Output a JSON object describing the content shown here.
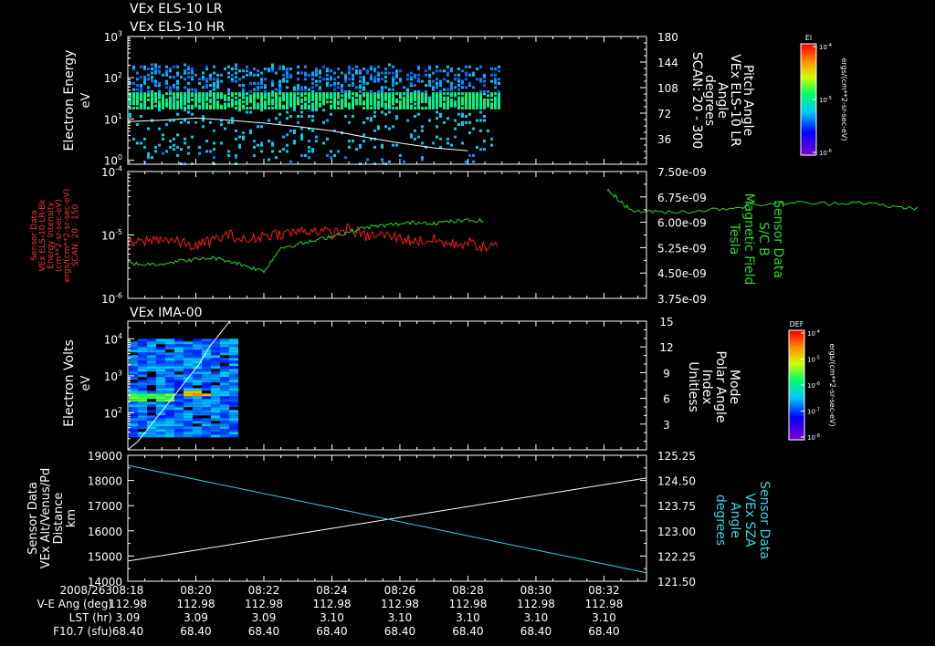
{
  "chart_data": [
    {
      "id": "panel1",
      "type": "heatmap",
      "titles": [
        "VEx ELS-10 LR",
        "VEx ELS-10 HR"
      ],
      "ylabel": [
        "Electron Energy",
        "eV"
      ],
      "yticks": [
        {
          "exp": "0",
          "v": 1
        },
        {
          "exp": "1",
          "v": 10
        },
        {
          "exp": "2",
          "v": 100
        },
        {
          "exp": "3",
          "v": 1000
        }
      ],
      "ylim": [
        0.8,
        1000
      ],
      "y2label": [
        "Pitch Angle",
        "VEx ELS-10 LR",
        "Angle",
        "degrees",
        "SCAN: 20 - 300"
      ],
      "y2ticks": [
        "180",
        "144",
        "108",
        "72",
        "36"
      ],
      "y2lim": [
        0,
        180
      ],
      "x_end_min": 10.9,
      "overlay_pitch": {
        "x": [
          0,
          1,
          2,
          3,
          4,
          5,
          6,
          7,
          8,
          9,
          10
        ],
        "y": [
          60,
          62,
          65,
          62,
          58,
          53,
          47,
          38,
          30,
          23,
          19
        ]
      },
      "colorbar": {
        "label": "El",
        "tick_prefix": "10",
        "tick_exps": [
          "-4",
          "-5",
          "-6"
        ],
        "units": "ergs/(cm**2-sr-sec-eV)"
      }
    },
    {
      "id": "panel2",
      "type": "line",
      "ylabel": [
        "Sensor Data",
        "VEx ELS-10 LR-Bk",
        "Energy Intensity",
        "(cm**2-sr-sec-eV)",
        "ergs/(cm**2-sr-sec-eV)",
        "SCAN: 20 - 150"
      ],
      "yticks": [
        {
          "exp": "-4"
        },
        {
          "exp": "-5"
        },
        {
          "exp": "-6"
        }
      ],
      "ylog": [
        -6,
        -4
      ],
      "y2label": [
        "Sensor Data",
        "S/C B",
        "Magnetic Field",
        "Tesla"
      ],
      "y2ticks": [
        "7.50e-09",
        "6.75e-09",
        "6.00e-09",
        "5.25e-09",
        "4.50e-09",
        "3.75e-09"
      ],
      "y2lim": [
        3.75e-09,
        7.5e-09
      ],
      "series": [
        {
          "name": "Energy Intensity",
          "axis": "left",
          "color": "#ff1a1a",
          "x": [
            0,
            0.5,
            1,
            1.5,
            2,
            2.5,
            3,
            3.5,
            4,
            4.5,
            5,
            5.5,
            6,
            6.5,
            7,
            7.5,
            8,
            8.5,
            9,
            9.5,
            10,
            10.5,
            10.9
          ],
          "logy": [
            -5.15,
            -5.1,
            -5.05,
            -5.12,
            -5.18,
            -5.08,
            -5.0,
            -5.1,
            -5.0,
            -4.98,
            -4.95,
            -4.92,
            -4.98,
            -4.9,
            -5.02,
            -5.0,
            -5.05,
            -5.1,
            -5.08,
            -5.15,
            -5.12,
            -5.2,
            -5.18
          ]
        },
        {
          "name": "S/C B",
          "axis": "right",
          "color": "#22dd22",
          "x": [
            0,
            0.5,
            1,
            1.5,
            2,
            2.5,
            3,
            3.5,
            4,
            4.5,
            5,
            5.5,
            6,
            6.5,
            7,
            7.5,
            8,
            8.5,
            9,
            9.5,
            10,
            10.5
          ],
          "y": [
            4.8e-09,
            4.75e-09,
            4.78e-09,
            4.85e-09,
            4.9e-09,
            4.95e-09,
            4.85e-09,
            4.7e-09,
            4.55e-09,
            5.25e-09,
            5.35e-09,
            5.45e-09,
            5.6e-09,
            5.7e-09,
            5.85e-09,
            5.9e-09,
            5.95e-09,
            6e-09,
            5.98e-09,
            6.02e-09,
            6.05e-09,
            6.05e-09
          ]
        },
        {
          "name": "S/C B segment 2",
          "axis": "right",
          "color": "#22dd22",
          "x": [
            14.1,
            14.4,
            14.8,
            15.5,
            16.5,
            17.5,
            18.5,
            19.5,
            20.5,
            21.5,
            22.5,
            23.3
          ],
          "y": [
            6.95e-09,
            6.7e-09,
            6.35e-09,
            6.3e-09,
            6.32e-09,
            6.4e-09,
            6.52e-09,
            6.58e-09,
            6.55e-09,
            6.6e-09,
            6.45e-09,
            6.42e-09
          ]
        }
      ]
    },
    {
      "id": "panel3",
      "type": "heatmap",
      "title": "VEx IMA-00",
      "ylabel": [
        "Electron Volts",
        "eV"
      ],
      "yticks": [
        {
          "exp": "2",
          "v": 100
        },
        {
          "exp": "3",
          "v": 1000
        },
        {
          "exp": "4",
          "v": 10000
        }
      ],
      "ylim": [
        10,
        30000
      ],
      "y2label": [
        "Mode",
        "Polar Angle",
        "Index",
        "Unitless"
      ],
      "y2ticks": [
        "15",
        "12",
        "9",
        "6",
        "3"
      ],
      "y2lim": [
        0,
        15
      ],
      "x_end_min": 3.0,
      "overlay_index": {
        "x": [
          0,
          0.3,
          0.6,
          0.9,
          1.2,
          1.5,
          1.8,
          2.1,
          2.4,
          2.7,
          3.0
        ],
        "y": [
          0,
          1,
          2.5,
          4,
          5.5,
          7,
          8.5,
          10,
          12,
          13.5,
          15
        ]
      },
      "colorbar": {
        "label": "DEF",
        "tick_prefix": "10",
        "tick_exps": [
          "-4",
          "-5",
          "-6",
          "-7",
          "-8"
        ],
        "units": "ergs/(cm**2-sr-sec-eV)"
      }
    },
    {
      "id": "panel4",
      "type": "line",
      "ylabel": [
        "Sensor Data",
        "VEx Alt/Venus/Pd",
        "Distance",
        "km"
      ],
      "yticks": [
        "19000",
        "18000",
        "17000",
        "16000",
        "15000",
        "14000"
      ],
      "ylim": [
        14000,
        19000
      ],
      "y2label": [
        "Sensor Data",
        "VEx SZA",
        "Angle",
        "degrees"
      ],
      "y2ticks": [
        "125.25",
        "124.50",
        "123.75",
        "123.00",
        "122.25",
        "121.50"
      ],
      "y2lim": [
        121.5,
        125.25
      ],
      "series": [
        {
          "name": "VEx Alt/Venus/Pd",
          "axis": "left",
          "color": "#ffffff",
          "x": [
            0,
            15.25
          ],
          "y": [
            14800,
            18100
          ]
        },
        {
          "name": "VEx SZA",
          "axis": "right",
          "color": "#33d6e6",
          "x": [
            0,
            15.25
          ],
          "y": [
            124.95,
            121.75
          ]
        }
      ]
    }
  ],
  "time_axis": {
    "ticks": [
      "08:18",
      "08:20",
      "08:22",
      "08:24",
      "08:26",
      "08:28",
      "08:30",
      "08:32"
    ],
    "minor_per_major": 4,
    "span_min": 15.25,
    "rows": [
      {
        "label": "2008/263",
        "values": [
          "08:18",
          "08:20",
          "08:22",
          "08:24",
          "08:26",
          "08:28",
          "08:30",
          "08:32"
        ]
      },
      {
        "label": "V-E Ang (deg)",
        "values": [
          "112.98",
          "112.98",
          "112.98",
          "112.98",
          "112.98",
          "112.98",
          "112.98",
          "112.98"
        ]
      },
      {
        "label": "LST (hr)",
        "values": [
          "3.09",
          "3.09",
          "3.09",
          "3.10",
          "3.10",
          "3.10",
          "3.10",
          "3.10"
        ]
      },
      {
        "label": "F10.7 (sfu)",
        "values": [
          "68.40",
          "68.40",
          "68.40",
          "68.40",
          "68.40",
          "68.40",
          "68.40",
          "68.40"
        ]
      }
    ]
  },
  "colors": {
    "left_panel2": "#ff3333",
    "right_panel2": "#22dd22",
    "right_panel4": "#33d6e6",
    "axis": "#ffffff"
  }
}
